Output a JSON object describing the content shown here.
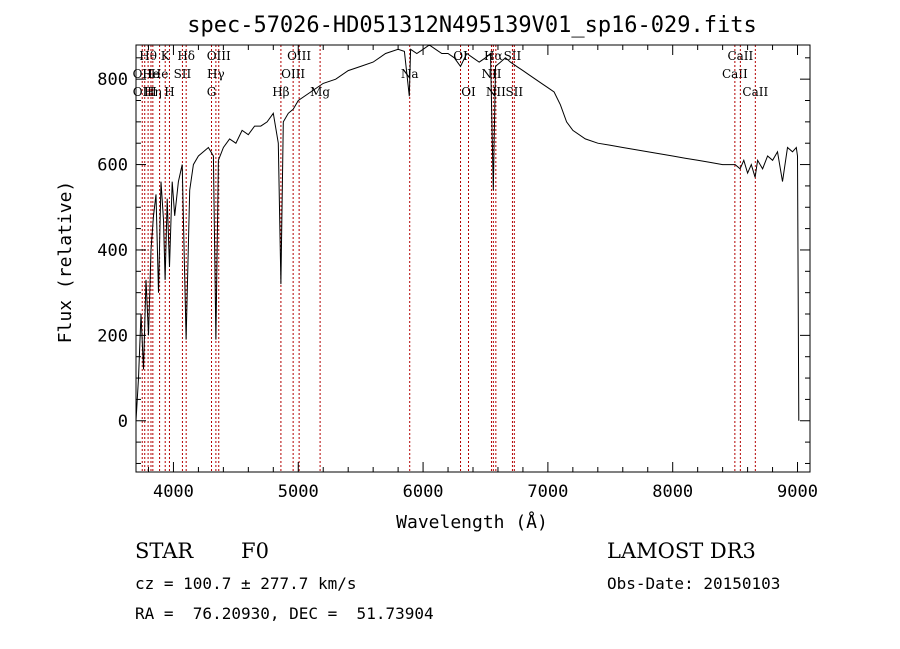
{
  "chart_data": {
    "type": "line",
    "title": "spec-57026-HD051312N495139V01_sp16-029.fits",
    "xlabel": "Wavelength (Å)",
    "ylabel": "Flux (relative)",
    "xlim": [
      3700,
      9100
    ],
    "ylim": [
      -120,
      880
    ],
    "x_ticks": [
      4000,
      5000,
      6000,
      7000,
      8000,
      9000
    ],
    "y_ticks": [
      0,
      200,
      400,
      600,
      800
    ],
    "grid": false,
    "series": [
      {
        "color": "#000000",
        "x": [
          3700,
          3720,
          3740,
          3760,
          3780,
          3800,
          3820,
          3840,
          3860,
          3880,
          3900,
          3920,
          3933,
          3950,
          3968,
          3990,
          4010,
          4040,
          4070,
          4101,
          4130,
          4160,
          4200,
          4240,
          4280,
          4320,
          4340,
          4360,
          4400,
          4450,
          4500,
          4550,
          4600,
          4650,
          4700,
          4750,
          4800,
          4840,
          4861,
          4880,
          4920,
          4960,
          5000,
          5100,
          5200,
          5300,
          5400,
          5500,
          5600,
          5700,
          5800,
          5850,
          5890,
          5900,
          5950,
          6000,
          6050,
          6100,
          6150,
          6200,
          6250,
          6300,
          6350,
          6400,
          6450,
          6500,
          6540,
          6563,
          6580,
          6620,
          6660,
          6700,
          6750,
          6800,
          6850,
          6900,
          6950,
          7000,
          7050,
          7100,
          7150,
          7200,
          7300,
          7400,
          7500,
          7600,
          7700,
          7800,
          7900,
          8000,
          8100,
          8200,
          8300,
          8400,
          8500,
          8540,
          8570,
          8600,
          8630,
          8660,
          8680,
          8720,
          8760,
          8800,
          8840,
          8880,
          8920,
          8960,
          8990,
          9000,
          9010
        ],
        "y": [
          0,
          100,
          250,
          120,
          330,
          200,
          400,
          480,
          530,
          300,
          560,
          470,
          330,
          520,
          360,
          560,
          480,
          560,
          600,
          190,
          540,
          600,
          620,
          630,
          640,
          620,
          190,
          610,
          640,
          660,
          650,
          680,
          670,
          690,
          690,
          700,
          720,
          650,
          320,
          700,
          720,
          730,
          750,
          770,
          790,
          800,
          820,
          830,
          840,
          860,
          870,
          865,
          760,
          870,
          860,
          870,
          880,
          870,
          860,
          860,
          850,
          830,
          860,
          850,
          840,
          850,
          860,
          540,
          830,
          840,
          850,
          840,
          830,
          820,
          810,
          800,
          790,
          780,
          770,
          740,
          700,
          680,
          660,
          650,
          645,
          640,
          635,
          630,
          625,
          620,
          615,
          610,
          605,
          600,
          600,
          590,
          610,
          580,
          600,
          570,
          610,
          590,
          620,
          610,
          630,
          560,
          640,
          630,
          640,
          620,
          0
        ]
      }
    ],
    "line_markers": [
      {
        "wl": 3750,
        "label": "OII",
        "row": 2
      },
      {
        "wl": 3770,
        "label": "OIII",
        "row": 3
      },
      {
        "wl": 3797,
        "label": "Hθ",
        "row": 1
      },
      {
        "wl": 3820,
        "label": "He",
        "row": 2
      },
      {
        "wl": 3835,
        "label": "Hη",
        "row": 3
      },
      {
        "wl": 3889,
        "label": "He",
        "row": 2
      },
      {
        "wl": 3934,
        "label": "K",
        "row": 1
      },
      {
        "wl": 3968,
        "label": "H",
        "row": 3
      },
      {
        "wl": 4072,
        "label": "SII",
        "row": 2
      },
      {
        "wl": 4102,
        "label": "Hδ",
        "row": 1
      },
      {
        "wl": 4305,
        "label": "G",
        "row": 3
      },
      {
        "wl": 4340,
        "label": "Hγ",
        "row": 2
      },
      {
        "wl": 4363,
        "label": "OIII",
        "row": 1
      },
      {
        "wl": 4861,
        "label": "Hβ",
        "row": 3
      },
      {
        "wl": 4959,
        "label": "OIII",
        "row": 2
      },
      {
        "wl": 5007,
        "label": "OIII",
        "row": 1
      },
      {
        "wl": 5175,
        "label": "Mg",
        "row": 3
      },
      {
        "wl": 5893,
        "label": "Na",
        "row": 2
      },
      {
        "wl": 6300,
        "label": "OI",
        "row": 1
      },
      {
        "wl": 6364,
        "label": "OI",
        "row": 3
      },
      {
        "wl": 6548,
        "label": "NII",
        "row": 2
      },
      {
        "wl": 6563,
        "label": "Hα",
        "row": 1
      },
      {
        "wl": 6583,
        "label": "NII",
        "row": 3
      },
      {
        "wl": 6716,
        "label": "SII",
        "row": 1
      },
      {
        "wl": 6731,
        "label": "SII",
        "row": 3
      },
      {
        "wl": 8498,
        "label": "CaII",
        "row": 2
      },
      {
        "wl": 8542,
        "label": "CaII",
        "row": 1
      },
      {
        "wl": 8662,
        "label": "CaII",
        "row": 3
      }
    ]
  },
  "footer": {
    "object_type": "STAR",
    "subclass": "F0",
    "survey": "LAMOST DR3",
    "velocity": "cz = 100.7 ± 277.7 km/s",
    "obs_date": "Obs-Date: 20150103",
    "coords": "RA =  76.20930, DEC =  51.73904"
  }
}
